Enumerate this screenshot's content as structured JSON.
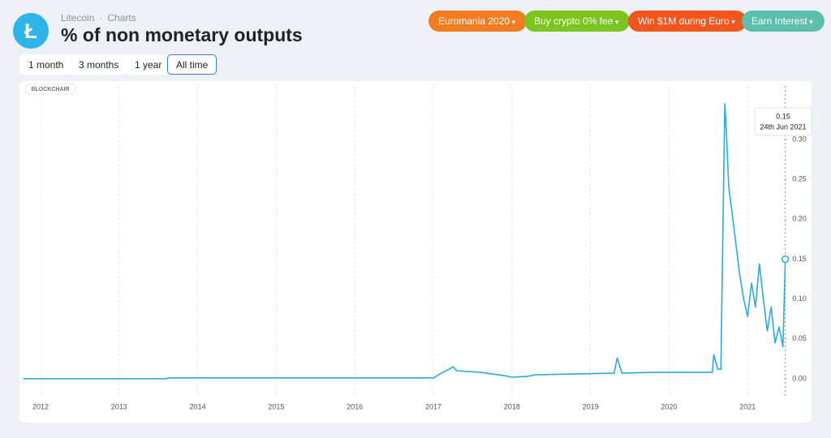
{
  "header": {
    "brand": "Litecoin",
    "section": "Charts",
    "title": "% of non monetary outputs"
  },
  "promos": [
    {
      "label": "Euromania 2020",
      "color": "#f47c20"
    },
    {
      "label": "Buy crypto 0% fee",
      "color": "#7cc41f"
    },
    {
      "label": "Win $1M during Euro",
      "color": "#f2561d"
    },
    {
      "label": "Earn Interest",
      "color": "#5cbfae"
    }
  ],
  "ranges": [
    "1 month",
    "3 months",
    "1 year",
    "All time"
  ],
  "selected_range": 3,
  "chart_data": {
    "type": "line",
    "watermark": "BLOCKCHAIR",
    "color": "#29abe2",
    "x": [
      2011.78,
      2013.6,
      2013.62,
      2017.0,
      2017.1,
      2017.2,
      2017.25,
      2017.3,
      2017.6,
      2017.9,
      2018.0,
      2018.2,
      2018.3,
      2018.8,
      2019.3,
      2019.34,
      2019.4,
      2019.8,
      2020.4,
      2020.55,
      2020.57,
      2020.62,
      2020.66,
      2020.68,
      2020.71,
      2020.73,
      2020.76,
      2020.8,
      2020.85,
      2020.9,
      2020.95,
      2021.0,
      2021.05,
      2021.1,
      2021.15,
      2021.2,
      2021.25,
      2021.3,
      2021.35,
      2021.4,
      2021.45,
      2021.48
    ],
    "values": [
      0.0,
      0.0,
      0.001,
      0.001,
      0.007,
      0.012,
      0.015,
      0.01,
      0.008,
      0.004,
      0.002,
      0.003,
      0.005,
      0.006,
      0.007,
      0.026,
      0.007,
      0.008,
      0.008,
      0.008,
      0.03,
      0.012,
      0.012,
      0.15,
      0.345,
      0.31,
      0.24,
      0.21,
      0.17,
      0.13,
      0.1,
      0.078,
      0.12,
      0.09,
      0.144,
      0.1,
      0.06,
      0.09,
      0.045,
      0.065,
      0.04,
      0.15
    ],
    "xlim": [
      2011.78,
      2021.54
    ],
    "ylim": [
      -0.016,
      0.37
    ],
    "xticks": [
      2012,
      2013,
      2014,
      2015,
      2016,
      2017,
      2018,
      2019,
      2020,
      2021
    ],
    "yticks": [
      {
        "value": 0,
        "label": "0.00"
      },
      {
        "value": 0.05,
        "label": "0.05"
      },
      {
        "value": 0.1,
        "label": "0.10"
      },
      {
        "value": 0.15,
        "label": "0.15"
      },
      {
        "value": 0.2,
        "label": "0.20"
      },
      {
        "value": 0.25,
        "label": "0.25"
      },
      {
        "value": 0.3,
        "label": "0.30"
      }
    ],
    "grid": true,
    "tooltip": {
      "label": "0.15",
      "date": "24th Jun 2021"
    }
  }
}
